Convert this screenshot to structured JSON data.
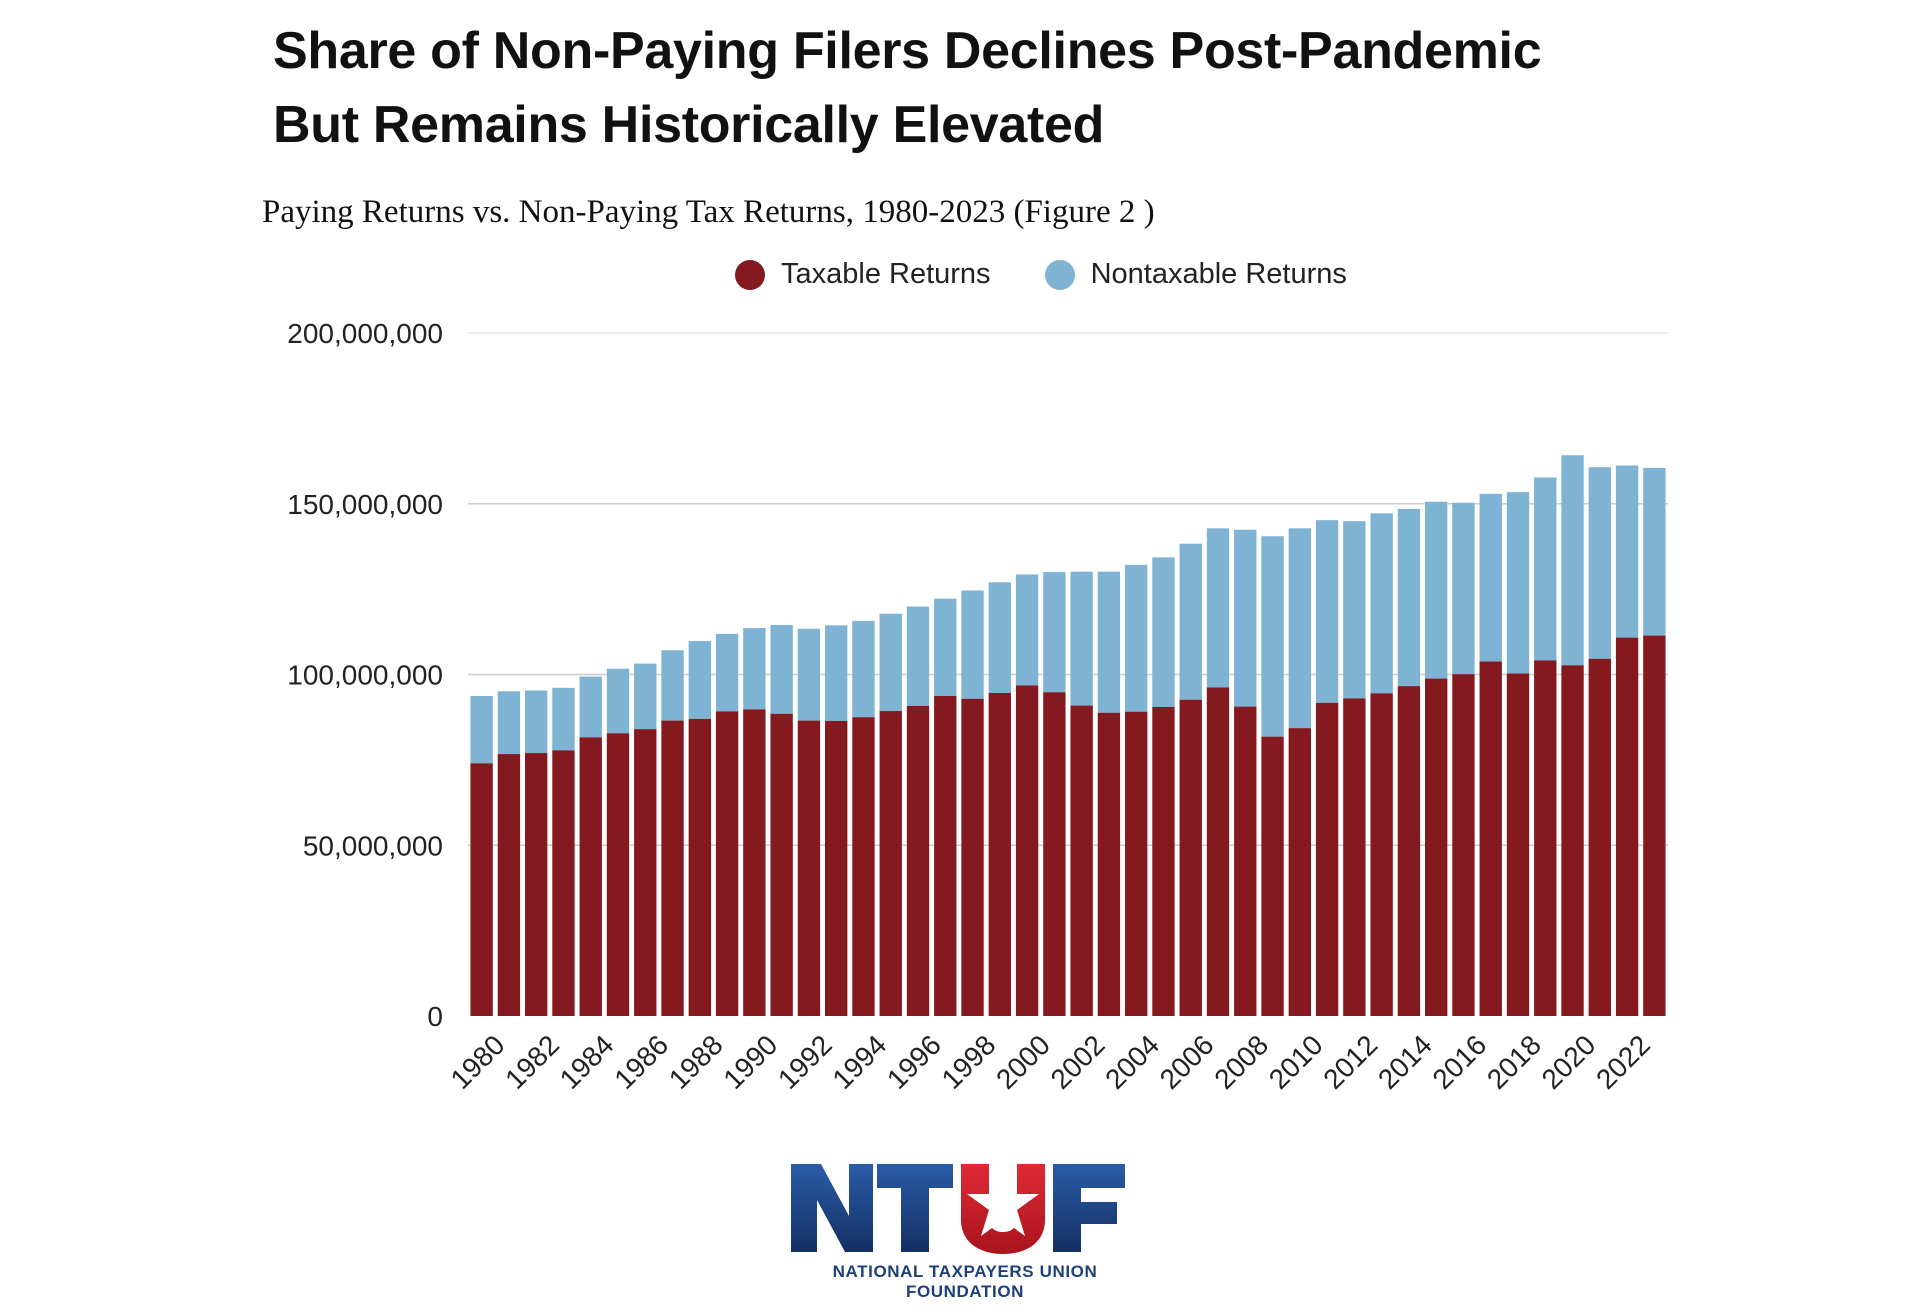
{
  "title_line1": "Share of Non-Paying Filers Declines Post-Pandemic",
  "title_line2": "But Remains Historically Elevated",
  "subtitle": "Paying Returns vs. Non-Paying Tax Returns, 1980-2023 (Figure 2 )",
  "colors": {
    "taxable": "#841a1f",
    "nontaxable": "#7fb3d3",
    "gridline": "#d9d9d9"
  },
  "logo": {
    "text": "NTUF",
    "caption": "NATIONAL TAXPAYERS UNION FOUNDATION",
    "colors": {
      "blue": "#1d3f7a",
      "red": "#d11f2e"
    }
  },
  "chart_data": {
    "type": "bar",
    "stacked": true,
    "legend_position": "top-center",
    "grid": true,
    "ylim": [
      0,
      200000000
    ],
    "y_ticks": [
      0,
      50000000,
      100000000,
      150000000,
      200000000
    ],
    "y_tick_labels": [
      "0",
      "50,000,000",
      "100,000,000",
      "150,000,000",
      "200,000,000"
    ],
    "xlabel": "",
    "ylabel": "",
    "categories": [
      "1980",
      "1981",
      "1982",
      "1983",
      "1984",
      "1985",
      "1986",
      "1987",
      "1988",
      "1989",
      "1990",
      "1991",
      "1992",
      "1993",
      "1994",
      "1995",
      "1996",
      "1997",
      "1998",
      "1999",
      "2000",
      "2001",
      "2002",
      "2003",
      "2004",
      "2005",
      "2006",
      "2007",
      "2008",
      "2009",
      "2010",
      "2011",
      "2012",
      "2013",
      "2014",
      "2015",
      "2016",
      "2017",
      "2018",
      "2019",
      "2020",
      "2021",
      "2022",
      "2023"
    ],
    "x_tick_labels": [
      "1980",
      "1982",
      "1984",
      "1986",
      "1988",
      "1990",
      "1992",
      "1994",
      "1996",
      "1998",
      "2000",
      "2002",
      "2004",
      "2006",
      "2008",
      "2010",
      "2012",
      "2014",
      "2016",
      "2018",
      "2020",
      "2022"
    ],
    "series": [
      {
        "name": "Taxable Returns",
        "values": [
          74000000,
          76700000,
          77000000,
          77800000,
          81600000,
          82800000,
          84000000,
          86500000,
          87000000,
          89200000,
          89800000,
          88500000,
          86500000,
          86400000,
          87500000,
          89300000,
          90800000,
          93700000,
          92900000,
          94600000,
          96800000,
          94800000,
          90900000,
          88800000,
          89100000,
          90500000,
          92600000,
          96200000,
          90600000,
          81800000,
          84300000,
          91700000,
          93000000,
          94500000,
          96600000,
          98800000,
          100100000,
          103800000,
          100300000,
          104100000,
          102700000,
          104600000,
          110800000,
          111400000
        ]
      },
      {
        "name": "Nontaxable Returns",
        "values": [
          19700000,
          18400000,
          18300000,
          18300000,
          17800000,
          18900000,
          19200000,
          20600000,
          22800000,
          22700000,
          23800000,
          26000000,
          26900000,
          28000000,
          28200000,
          28500000,
          29100000,
          28500000,
          31700000,
          32400000,
          32500000,
          35200000,
          39200000,
          41300000,
          43000000,
          43800000,
          45700000,
          46600000,
          51800000,
          58700000,
          58500000,
          53500000,
          51900000,
          52700000,
          51900000,
          51800000,
          50200000,
          49100000,
          53100000,
          53600000,
          61500000,
          56100000,
          50400000,
          49100000
        ]
      }
    ]
  }
}
